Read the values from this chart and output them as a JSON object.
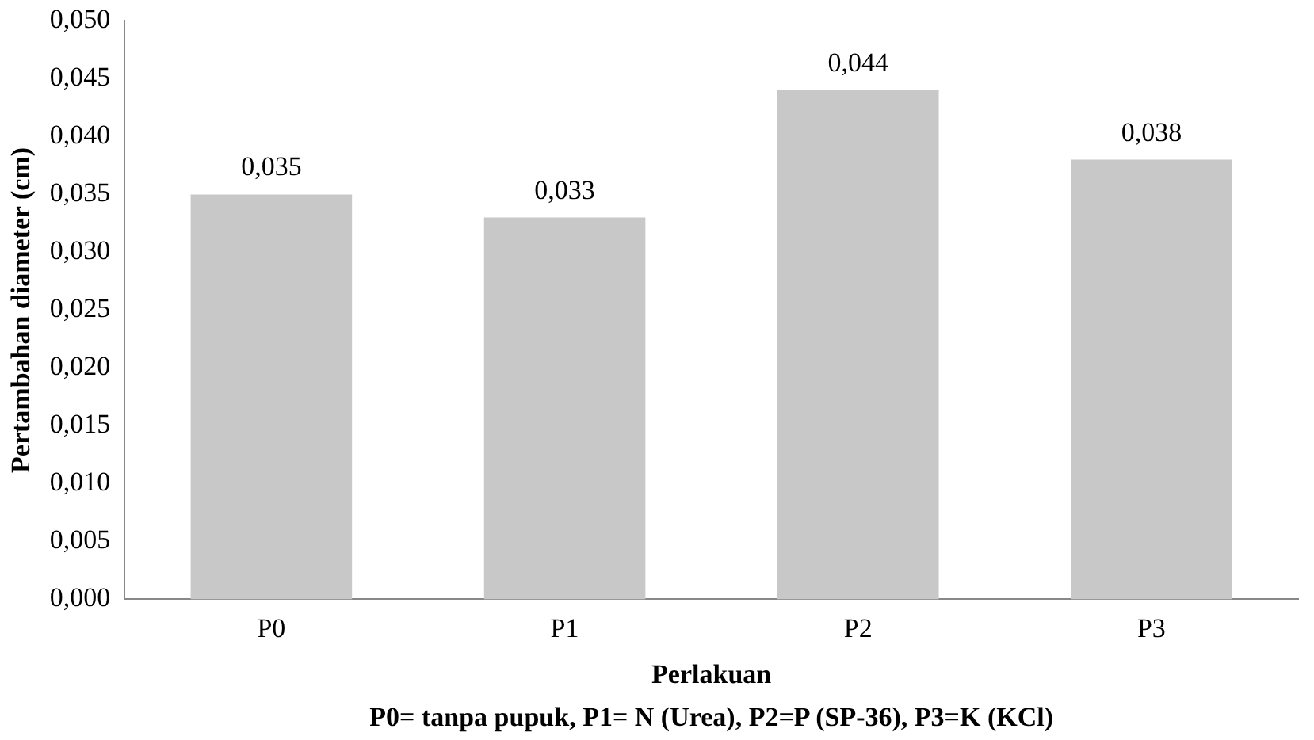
{
  "chart_data": {
    "type": "bar",
    "xlabel": "Perlakuan",
    "ylabel": "Pertambahan diameter (cm)",
    "categories": [
      "P0",
      "P1",
      "P2",
      "P3"
    ],
    "values": [
      0.035,
      0.033,
      0.044,
      0.038
    ],
    "value_labels": [
      "0,035",
      "0,033",
      "0,044",
      "0,038"
    ],
    "color": "#c8c8c8",
    "ylim": [
      0,
      0.05
    ],
    "yticks": [
      {
        "value": 0,
        "label": "0,000"
      },
      {
        "value": 0.005,
        "label": "0,005"
      },
      {
        "value": 0.01,
        "label": "0,010"
      },
      {
        "value": 0.015,
        "label": "0,015"
      },
      {
        "value": 0.02,
        "label": "0,020"
      },
      {
        "value": 0.025,
        "label": "0,025"
      },
      {
        "value": 0.03,
        "label": "0,030"
      },
      {
        "value": 0.035,
        "label": "0,035"
      },
      {
        "value": 0.04,
        "label": "0,040"
      },
      {
        "value": 0.045,
        "label": "0,045"
      },
      {
        "value": 0.05,
        "label": "0,050"
      }
    ],
    "grid": false,
    "legend": false,
    "annotations": [
      "P0= tanpa pupuk, P1= N (Urea), P2=P (SP-36), P3=K (KCl)"
    ]
  }
}
